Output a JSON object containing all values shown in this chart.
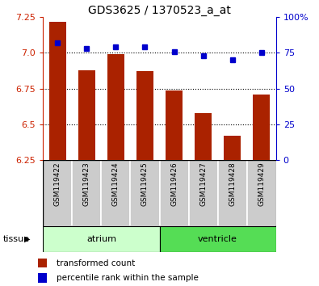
{
  "title": "GDS3625 / 1370523_a_at",
  "samples": [
    "GSM119422",
    "GSM119423",
    "GSM119424",
    "GSM119425",
    "GSM119426",
    "GSM119427",
    "GSM119428",
    "GSM119429"
  ],
  "bar_values": [
    7.22,
    6.88,
    6.99,
    6.87,
    6.74,
    6.58,
    6.42,
    6.71
  ],
  "dot_values": [
    82,
    78,
    79,
    79,
    76,
    73,
    70,
    75
  ],
  "ylim_left": [
    6.25,
    7.25
  ],
  "ylim_right": [
    0,
    100
  ],
  "left_ticks": [
    6.25,
    6.5,
    6.75,
    7.0,
    7.25
  ],
  "right_ticks": [
    0,
    25,
    50,
    75,
    100
  ],
  "right_tick_labels": [
    "0",
    "25",
    "50",
    "75",
    "100%"
  ],
  "hlines": [
    7.0,
    6.75,
    6.5
  ],
  "bar_color": "#AA2200",
  "dot_color": "#0000CC",
  "tissue_groups": [
    {
      "label": "atrium",
      "start": 0,
      "end": 3,
      "color": "#CCFFCC"
    },
    {
      "label": "ventricle",
      "start": 4,
      "end": 7,
      "color": "#55DD55"
    }
  ],
  "legend_bar_label": "transformed count",
  "legend_dot_label": "percentile rank within the sample",
  "tissue_label": "tissue",
  "left_axis_color": "#CC2200",
  "right_axis_color": "#0000CC",
  "background_color": "#FFFFFF",
  "tick_area_color": "#CCCCCC",
  "figsize": [
    3.95,
    3.54
  ],
  "dpi": 100
}
